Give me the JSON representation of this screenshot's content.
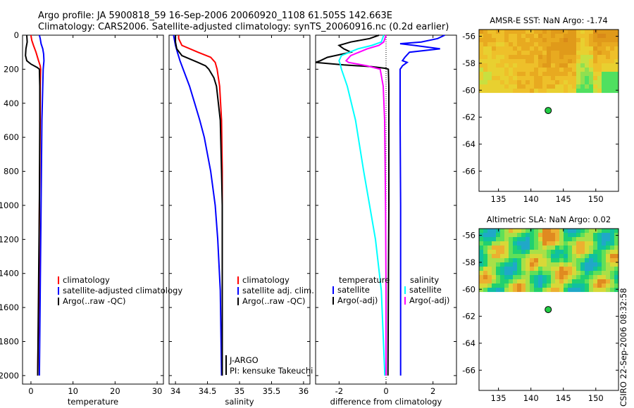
{
  "header": {
    "line1": "Argo profile: JA 5900818_59 16-Sep-2006 20060920_1108 61.505S 142.663E",
    "line2": "Climatology: CARS2006. Satellite-adjusted climatology: synTS_20060916.nc (0.2d earlier)"
  },
  "colors": {
    "climatology": "#ff0000",
    "satellite": "#0000ff",
    "argo": "#000000",
    "satellite_s": "#00ffff",
    "argo_s": "#ff00ff"
  },
  "chart_data": [
    {
      "id": "temperature",
      "type": "line",
      "xlabel": "temperature",
      "ylabel": "",
      "xlim": [
        -2,
        31.5
      ],
      "ylim": [
        2050,
        0
      ],
      "xticks": [
        0,
        10,
        20,
        30
      ],
      "yticks": [
        0,
        200,
        400,
        600,
        800,
        1000,
        1200,
        1400,
        1600,
        1800,
        2000
      ],
      "legend": [
        "climatology",
        "satellite-adjusted climatology",
        "Argo(..raw -QC)"
      ],
      "series": [
        {
          "name": "climatology",
          "color": "#ff0000",
          "depth": [
            0,
            30,
            60,
            100,
            150,
            180,
            200,
            300,
            500,
            1000,
            1500,
            2000
          ],
          "values": [
            0.0,
            0.2,
            0.6,
            1.2,
            1.8,
            2.2,
            2.3,
            2.2,
            2.2,
            2.0,
            1.9,
            1.6
          ]
        },
        {
          "name": "satellite-adjusted climatology",
          "color": "#0000ff",
          "depth": [
            0,
            20,
            50,
            80,
            110,
            150,
            200,
            300,
            500,
            1000,
            1500,
            2000
          ],
          "values": [
            2.0,
            2.2,
            2.4,
            2.8,
            3.0,
            3.1,
            2.9,
            2.8,
            2.6,
            2.4,
            2.2,
            2.0
          ]
        },
        {
          "name": "Argo(..raw -QC)",
          "color": "#000000",
          "depth": [
            0,
            40,
            80,
            120,
            150,
            170,
            190,
            200,
            300,
            500,
            1000,
            1500,
            2000
          ],
          "values": [
            -1.0,
            -0.9,
            -1.2,
            -1.3,
            -1.0,
            0.0,
            1.5,
            2.0,
            2.1,
            2.1,
            2.0,
            1.8,
            1.6
          ]
        }
      ]
    },
    {
      "id": "salinity",
      "type": "line",
      "xlabel": "salinity",
      "xlim": [
        33.9,
        36.1
      ],
      "ylim": [
        2050,
        0
      ],
      "xticks": [
        34,
        34.5,
        35,
        35.5,
        36
      ],
      "legend": [
        "climatology",
        "satellite adj. clim.",
        "Argo(..raw -QC)"
      ],
      "annotation": [
        "J-ARGO",
        "PI: kensuke Takeuchi"
      ],
      "series": [
        {
          "name": "climatology",
          "color": "#ff0000",
          "depth": [
            0,
            20,
            60,
            100,
            130,
            160,
            200,
            300,
            500,
            800,
            1200,
            1600,
            2000
          ],
          "values": [
            34.05,
            34.05,
            34.1,
            34.35,
            34.55,
            34.62,
            34.65,
            34.69,
            34.72,
            34.73,
            34.73,
            34.73,
            34.73
          ]
        },
        {
          "name": "satellite adj. clim.",
          "color": "#0000ff",
          "depth": [
            0,
            20,
            60,
            100,
            150,
            200,
            300,
            400,
            500,
            600,
            800,
            1000,
            1200,
            1500,
            2000
          ],
          "values": [
            33.97,
            33.98,
            34.0,
            34.03,
            34.07,
            34.12,
            34.22,
            34.3,
            34.38,
            34.45,
            34.55,
            34.62,
            34.66,
            34.7,
            34.72
          ]
        },
        {
          "name": "Argo(..raw -QC)",
          "color": "#000000",
          "depth": [
            0,
            40,
            80,
            120,
            160,
            180,
            200,
            250,
            300,
            500,
            800,
            1000,
            1500,
            2000
          ],
          "values": [
            34.0,
            34.0,
            34.02,
            34.1,
            34.35,
            34.47,
            34.52,
            34.6,
            34.64,
            34.7,
            34.72,
            34.73,
            34.73,
            34.73
          ]
        }
      ]
    },
    {
      "id": "difference",
      "type": "line",
      "xlabel": "difference from climatology",
      "xlim": [
        -3,
        3
      ],
      "ylim": [
        2050,
        0
      ],
      "xticks": [
        -2,
        0,
        2
      ],
      "legend_headers": [
        "temperature",
        "salinity"
      ],
      "legend_left": [
        "satellite",
        "Argo(-adj)"
      ],
      "legend_right": [
        "satellite",
        "Argo(-adj)"
      ],
      "series": [
        {
          "name": "temperature satellite",
          "color": "#0000ff",
          "depth": [
            0,
            20,
            40,
            50,
            60,
            80,
            100,
            130,
            150,
            160,
            170,
            180,
            190,
            200,
            250,
            500,
            1000,
            1500,
            2000
          ],
          "values": [
            2.5,
            2.2,
            1.5,
            0.6,
            1.2,
            2.3,
            1.0,
            0.8,
            0.7,
            0.9,
            0.8,
            0.7,
            0.65,
            0.6,
            0.6,
            0.6,
            0.62,
            0.62,
            0.62
          ]
        },
        {
          "name": "temperature Argo(-adj)",
          "color": "#000000",
          "depth": [
            0,
            20,
            40,
            60,
            80,
            100,
            130,
            150,
            160,
            175,
            185,
            195,
            200,
            300,
            500,
            1000,
            1500,
            2000
          ],
          "values": [
            -0.3,
            -0.7,
            -1.5,
            -2.0,
            -1.8,
            -1.5,
            -2.5,
            -2.8,
            -3.0,
            -1.8,
            -0.6,
            0.0,
            0.1,
            0.12,
            0.12,
            0.12,
            0.1,
            0.08
          ]
        },
        {
          "name": "salinity satellite",
          "color": "#00ffff",
          "depth": [
            0,
            40,
            60,
            80,
            120,
            150,
            170,
            200,
            300,
            500,
            800,
            1000,
            1200,
            1500,
            2000
          ],
          "values": [
            -0.1,
            -0.2,
            -0.6,
            -1.2,
            -1.9,
            -2.0,
            -1.95,
            -1.9,
            -1.65,
            -1.3,
            -0.95,
            -0.7,
            -0.45,
            -0.2,
            -0.05
          ]
        },
        {
          "name": "salinity Argo(-adj)",
          "color": "#ff00ff",
          "depth": [
            0,
            40,
            60,
            80,
            120,
            150,
            160,
            170,
            180,
            200,
            300,
            500,
            1000,
            1500,
            2000
          ],
          "values": [
            0.0,
            -0.1,
            -0.3,
            -0.8,
            -1.5,
            -1.7,
            -1.6,
            -1.2,
            -0.8,
            -0.25,
            -0.12,
            -0.06,
            -0.02,
            0.0,
            0.0
          ]
        }
      ]
    },
    {
      "id": "sst-map",
      "type": "heatmap",
      "title": "AMSR-E SST: NaN Argo: -1.74",
      "xlim": [
        132,
        153.5
      ],
      "ylim": [
        -67.5,
        -55.5
      ],
      "xticks": [
        135,
        140,
        145,
        150
      ],
      "yticks": [
        -56,
        -58,
        -60,
        -62,
        -64,
        -66
      ],
      "data_extent_lat": [
        -60.2,
        -55.5
      ],
      "argo_point": {
        "lon": 142.663,
        "lat": -61.505
      }
    },
    {
      "id": "sla-map",
      "type": "heatmap",
      "title": "Altimetric SLA: NaN Argo: 0.02",
      "xlim": [
        132,
        153.5
      ],
      "ylim": [
        -67.5,
        -55.5
      ],
      "xticks": [
        135,
        140,
        145,
        150
      ],
      "yticks": [
        -56,
        -58,
        -60,
        -62,
        -64,
        -66
      ],
      "data_extent_lat": [
        -60.2,
        -55.5
      ],
      "argo_point": {
        "lon": 142.663,
        "lat": -61.505
      }
    }
  ],
  "footer": {
    "stamp": "CSIRO 22-Sep-2006 08:32:58"
  }
}
